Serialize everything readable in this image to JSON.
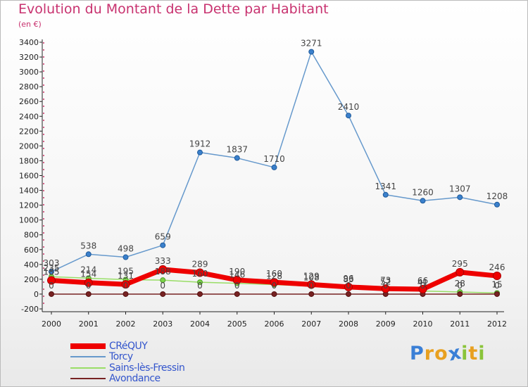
{
  "header": {
    "title": "Evolution du Montant de la Dette par Habitant",
    "subtitle": "(en €)"
  },
  "brand": {
    "letters": [
      "P",
      "r",
      "o",
      "x",
      "i",
      "t",
      "i"
    ],
    "colors": [
      "#3a7fd6",
      "#e8a020",
      "#e8a020",
      "#3a7fd6",
      "#8ac43a",
      "#e8a020",
      "#8ac43a"
    ]
  },
  "chart_data": {
    "type": "line",
    "title": "Evolution du Montant de la Dette par Habitant",
    "ylabel": "(en €)",
    "xlabel": "",
    "ylim": [
      -200,
      3400
    ],
    "yticks": [
      -200,
      0,
      200,
      400,
      600,
      800,
      1000,
      1200,
      1400,
      1600,
      1800,
      2000,
      2200,
      2400,
      2600,
      2800,
      3000,
      3200,
      3400
    ],
    "x": [
      "2000",
      "2001",
      "2002",
      "2003",
      "2004",
      "2005",
      "2006",
      "2007",
      "2008",
      "2009",
      "2010",
      "2011",
      "2012"
    ],
    "grid": false,
    "legend_position": "bottom-left",
    "series": [
      {
        "name": "Torcy",
        "color": "#6699cc",
        "values": [
          303,
          538,
          498,
          659,
          1912,
          1837,
          1710,
          3271,
          2410,
          1341,
          1260,
          1307,
          1208
        ],
        "labels": true
      },
      {
        "name": "Sains-lès-Fressin",
        "color": "#99dd66",
        "values": [
          235,
          214,
          195,
          188,
          160,
          146,
          128,
          108,
          83,
          52,
          41,
          28,
          15
        ],
        "labels": true
      },
      {
        "name": "Avondance",
        "color": "#772222",
        "values": [
          0,
          0,
          0,
          0,
          0,
          0,
          0,
          0,
          0,
          0,
          0,
          0,
          0
        ],
        "labels": true
      },
      {
        "name": "CRéQUY",
        "color": "#ee0000",
        "values": [
          185,
          154,
          131,
          333,
          289,
          190,
          160,
          129,
          96,
          73,
          66,
          295,
          246
        ],
        "labels": true
      }
    ]
  }
}
